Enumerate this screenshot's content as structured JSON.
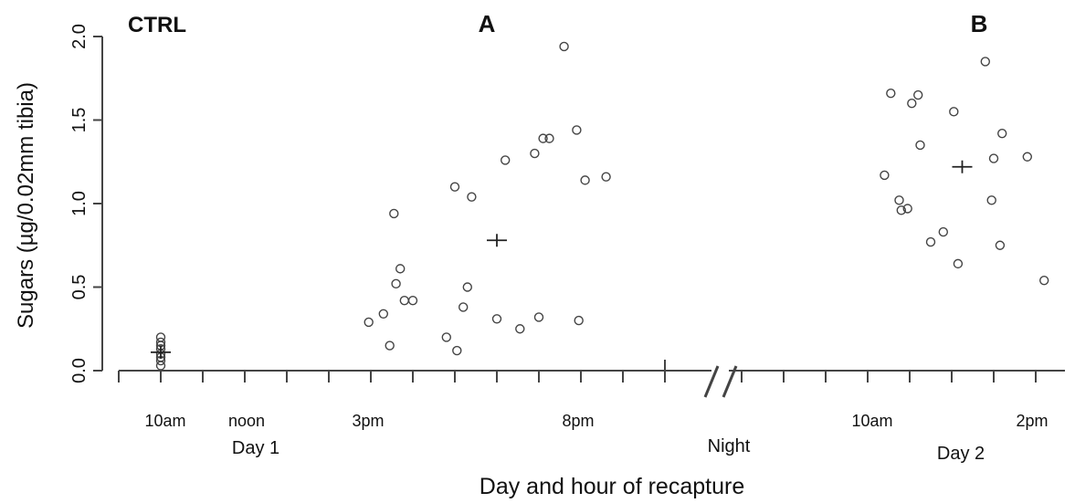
{
  "chart_data": {
    "type": "scatter",
    "xlabel": "Day and hour of recapture",
    "ylabel": "Sugars (µg/0.02mm tibia)",
    "ylim": [
      0.0,
      2.0
    ],
    "y_ticks": [
      "0.0",
      "0.5",
      "1.0",
      "1.5",
      "2.0"
    ],
    "y_tick_values": [
      0.0,
      0.5,
      1.0,
      1.5,
      2.0
    ],
    "x_axis_break": true,
    "grid": false,
    "legend": "none",
    "group_labels": [
      {
        "id": "ctrl",
        "text": "CTRL"
      },
      {
        "id": "a",
        "text": "A"
      },
      {
        "id": "b",
        "text": "B"
      }
    ],
    "x_tick_labels": [
      {
        "id": "10am-day1",
        "text": "10am"
      },
      {
        "id": "noon",
        "text": "noon"
      },
      {
        "id": "3pm",
        "text": "3pm"
      },
      {
        "id": "8pm",
        "text": "8pm"
      },
      {
        "id": "10am-day2",
        "text": "10am"
      },
      {
        "id": "2pm",
        "text": "2pm"
      }
    ],
    "period_labels": [
      {
        "id": "day1",
        "text": "Day 1"
      },
      {
        "id": "night",
        "text": "Night"
      },
      {
        "id": "day2",
        "text": "Day 2"
      }
    ],
    "series": [
      {
        "group": "CTRL",
        "points": [
          {
            "x": "Day 1 10:00",
            "y": 0.2
          },
          {
            "x": "Day 1 10:00",
            "y": 0.17
          },
          {
            "x": "Day 1 10:00",
            "y": 0.15
          },
          {
            "x": "Day 1 10:00",
            "y": 0.13
          },
          {
            "x": "Day 1 10:00",
            "y": 0.1
          },
          {
            "x": "Day 1 10:00",
            "y": 0.08
          },
          {
            "x": "Day 1 10:00",
            "y": 0.06
          },
          {
            "x": "Day 1 10:00",
            "y": 0.03
          }
        ],
        "mean": {
          "x": "Day 1 10:00",
          "y": 0.11
        }
      },
      {
        "group": "A",
        "points": [
          {
            "x": "Day 1 14:57",
            "y": 0.29
          },
          {
            "x": "Day 1 15:18",
            "y": 0.34
          },
          {
            "x": "Day 1 15:27",
            "y": 0.15
          },
          {
            "x": "Day 1 15:33",
            "y": 0.94
          },
          {
            "x": "Day 1 15:36",
            "y": 0.52
          },
          {
            "x": "Day 1 15:42",
            "y": 0.61
          },
          {
            "x": "Day 1 15:48",
            "y": 0.42
          },
          {
            "x": "Day 1 16:00",
            "y": 0.42
          },
          {
            "x": "Day 1 16:48",
            "y": 0.2
          },
          {
            "x": "Day 1 17:00",
            "y": 1.1
          },
          {
            "x": "Day 1 17:03",
            "y": 0.12
          },
          {
            "x": "Day 1 17:12",
            "y": 0.38
          },
          {
            "x": "Day 1 17:18",
            "y": 0.5
          },
          {
            "x": "Day 1 17:24",
            "y": 1.04
          },
          {
            "x": "Day 1 18:00",
            "y": 0.31
          },
          {
            "x": "Day 1 18:12",
            "y": 1.26
          },
          {
            "x": "Day 1 18:33",
            "y": 0.25
          },
          {
            "x": "Day 1 18:54",
            "y": 1.3
          },
          {
            "x": "Day 1 19:00",
            "y": 0.32
          },
          {
            "x": "Day 1 19:06",
            "y": 1.39
          },
          {
            "x": "Day 1 19:15",
            "y": 1.39
          },
          {
            "x": "Day 1 19:36",
            "y": 1.94
          },
          {
            "x": "Day 1 19:54",
            "y": 1.44
          },
          {
            "x": "Day 1 19:57",
            "y": 0.3
          },
          {
            "x": "Day 1 20:06",
            "y": 1.14
          },
          {
            "x": "Day 1 20:36",
            "y": 1.16
          }
        ],
        "mean": {
          "x": "Day 1 18:00",
          "y": 0.78
        }
      },
      {
        "group": "B",
        "points": [
          {
            "x": "Day 2 10:24",
            "y": 1.17
          },
          {
            "x": "Day 2 10:33",
            "y": 1.66
          },
          {
            "x": "Day 2 10:45",
            "y": 1.02
          },
          {
            "x": "Day 2 10:48",
            "y": 0.96
          },
          {
            "x": "Day 2 10:57",
            "y": 0.97
          },
          {
            "x": "Day 2 11:03",
            "y": 1.6
          },
          {
            "x": "Day 2 11:12",
            "y": 1.65
          },
          {
            "x": "Day 2 11:15",
            "y": 1.35
          },
          {
            "x": "Day 2 11:30",
            "y": 0.77
          },
          {
            "x": "Day 2 11:48",
            "y": 0.83
          },
          {
            "x": "Day 2 12:03",
            "y": 1.55
          },
          {
            "x": "Day 2 12:09",
            "y": 0.64
          },
          {
            "x": "Day 2 12:48",
            "y": 1.85
          },
          {
            "x": "Day 2 12:57",
            "y": 1.02
          },
          {
            "x": "Day 2 13:00",
            "y": 1.27
          },
          {
            "x": "Day 2 13:09",
            "y": 0.75
          },
          {
            "x": "Day 2 13:12",
            "y": 1.42
          },
          {
            "x": "Day 2 13:48",
            "y": 1.28
          },
          {
            "x": "Day 2 14:12",
            "y": 0.54
          }
        ],
        "mean": {
          "x": "Day 2 12:15",
          "y": 1.22
        }
      }
    ]
  }
}
